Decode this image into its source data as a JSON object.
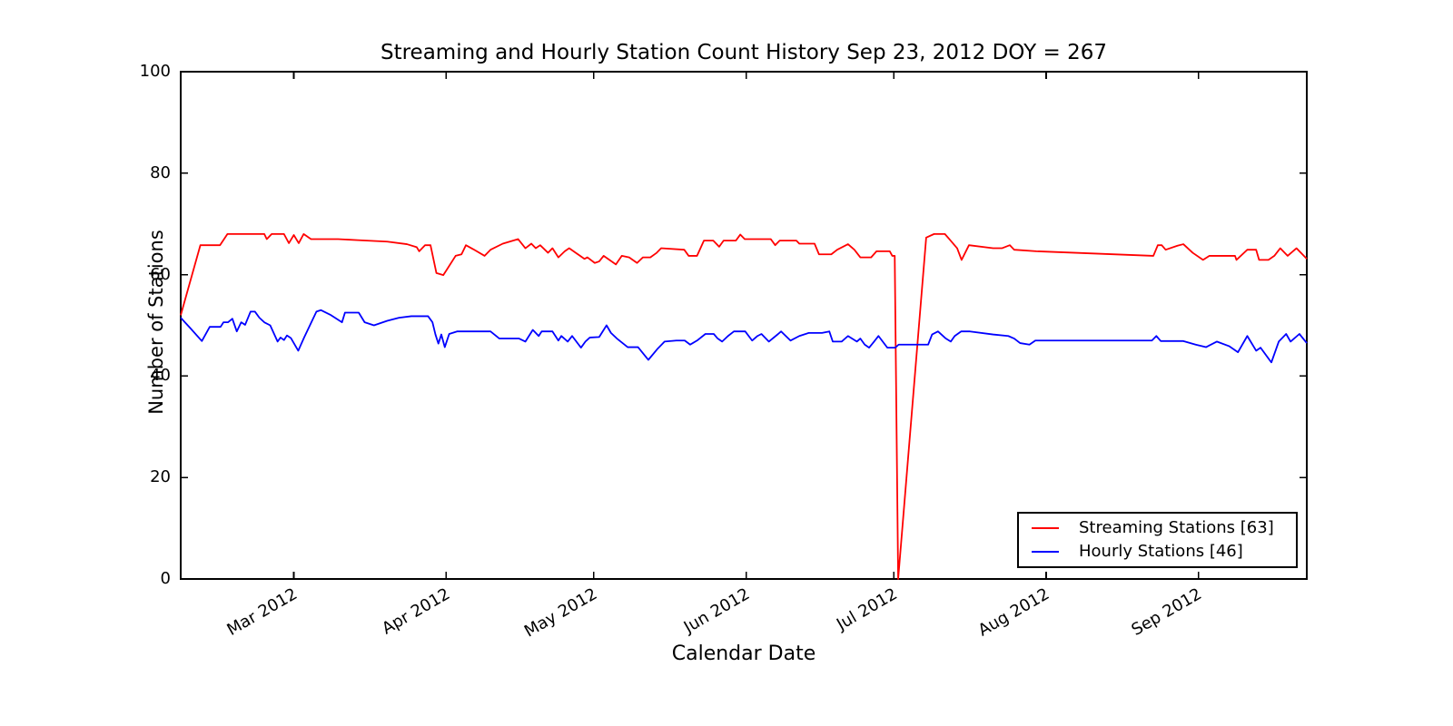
{
  "chart_data": {
    "type": "line",
    "title": "Streaming and Hourly Station Count History Sep 23, 2012 DOY = 267",
    "xlabel": "Calendar Date",
    "ylabel": "Number of Stations",
    "x_unit": "day_of_year_2012",
    "xlim": [
      38,
      267
    ],
    "ylim": [
      0,
      100
    ],
    "yticks": [
      0,
      20,
      40,
      60,
      80,
      100
    ],
    "xticks": [
      {
        "doy": 61,
        "label": "Mar 2012"
      },
      {
        "doy": 92,
        "label": "Apr 2012"
      },
      {
        "doy": 122,
        "label": "May 2012"
      },
      {
        "doy": 153,
        "label": "Jun 2012"
      },
      {
        "doy": 183,
        "label": "Jul 2012"
      },
      {
        "doy": 214,
        "label": "Aug 2012"
      },
      {
        "doy": 245,
        "label": "Sep 2012"
      }
    ],
    "grid": false,
    "legend_position": "lower right",
    "series": [
      {
        "id": "streaming-line",
        "name": "Streaming Stations [63]",
        "color": "#ff0000",
        "final_value": 63,
        "points": [
          [
            38,
            52
          ],
          [
            42,
            65.8
          ],
          [
            46,
            65.8
          ],
          [
            47.5,
            68
          ],
          [
            55,
            68
          ],
          [
            55.5,
            67
          ],
          [
            56.5,
            68
          ],
          [
            59,
            68
          ],
          [
            60,
            66.2
          ],
          [
            61,
            67.8
          ],
          [
            62,
            66.2
          ],
          [
            63,
            68
          ],
          [
            64.5,
            67
          ],
          [
            70,
            67
          ],
          [
            74,
            66.8
          ],
          [
            80,
            66.5
          ],
          [
            84,
            66
          ],
          [
            86,
            65.4
          ],
          [
            86.5,
            64.6
          ],
          [
            87.7,
            65.8
          ],
          [
            88.8,
            65.8
          ],
          [
            90,
            60.3
          ],
          [
            91.4,
            59.9
          ],
          [
            92,
            60.8
          ],
          [
            93.9,
            63.7
          ],
          [
            95.1,
            64
          ],
          [
            96,
            65.8
          ],
          [
            97.5,
            65
          ],
          [
            99.8,
            63.7
          ],
          [
            101,
            64.9
          ],
          [
            103.5,
            66.1
          ],
          [
            106.6,
            67
          ],
          [
            108.1,
            65.2
          ],
          [
            109.3,
            66.1
          ],
          [
            110.2,
            65.2
          ],
          [
            111.1,
            65.8
          ],
          [
            112.7,
            64.3
          ],
          [
            113.6,
            65.2
          ],
          [
            114.8,
            63.4
          ],
          [
            116.1,
            64.6
          ],
          [
            117,
            65.2
          ],
          [
            120.1,
            63.1
          ],
          [
            120.7,
            63.4
          ],
          [
            122.2,
            62.3
          ],
          [
            123.1,
            62.6
          ],
          [
            124,
            63.7
          ],
          [
            126.5,
            62
          ],
          [
            127.7,
            63.7
          ],
          [
            129.2,
            63.4
          ],
          [
            130.8,
            62.3
          ],
          [
            132,
            63.4
          ],
          [
            133.5,
            63.4
          ],
          [
            134.8,
            64.3
          ],
          [
            135.7,
            65.2
          ],
          [
            140.4,
            64.9
          ],
          [
            141.3,
            63.7
          ],
          [
            143,
            63.7
          ],
          [
            144.4,
            66.7
          ],
          [
            146.3,
            66.7
          ],
          [
            147.5,
            65.5
          ],
          [
            148.4,
            66.7
          ],
          [
            150.9,
            66.7
          ],
          [
            151.8,
            67.9
          ],
          [
            152.7,
            67
          ],
          [
            158,
            67
          ],
          [
            158.9,
            65.8
          ],
          [
            159.8,
            66.7
          ],
          [
            163.2,
            66.7
          ],
          [
            163.8,
            66.1
          ],
          [
            166.9,
            66.1
          ],
          [
            167.8,
            64
          ],
          [
            170.3,
            64
          ],
          [
            171.5,
            64.9
          ],
          [
            173.7,
            66
          ],
          [
            175,
            64.9
          ],
          [
            176.2,
            63.4
          ],
          [
            178.4,
            63.4
          ],
          [
            179.5,
            64.6
          ],
          [
            182.2,
            64.6
          ],
          [
            182.7,
            63.7
          ],
          [
            183.2,
            63.7
          ],
          [
            183.9,
            0
          ],
          [
            189.6,
            67.3
          ],
          [
            191.2,
            68
          ],
          [
            193.4,
            68
          ],
          [
            194.3,
            67
          ],
          [
            195.9,
            65.2
          ],
          [
            196.8,
            62.9
          ],
          [
            198.3,
            65.8
          ],
          [
            203.2,
            65.2
          ],
          [
            205,
            65.2
          ],
          [
            206.6,
            65.8
          ],
          [
            207.5,
            64.9
          ],
          [
            212,
            64.6
          ],
          [
            235.8,
            63.7
          ],
          [
            236.7,
            65.8
          ],
          [
            237.5,
            65.8
          ],
          [
            238.3,
            64.9
          ],
          [
            240.7,
            65.7
          ],
          [
            241.9,
            66
          ],
          [
            243.8,
            64.3
          ],
          [
            245.9,
            62.9
          ],
          [
            247.2,
            63.7
          ],
          [
            252.4,
            63.7
          ],
          [
            252.7,
            62.9
          ],
          [
            254.9,
            64.9
          ],
          [
            256.7,
            64.9
          ],
          [
            257.3,
            62.9
          ],
          [
            259.2,
            62.9
          ],
          [
            260.4,
            63.7
          ],
          [
            261.6,
            65.2
          ],
          [
            263.1,
            63.7
          ],
          [
            264.9,
            65.2
          ],
          [
            266.2,
            63.9
          ],
          [
            267,
            63.1
          ]
        ]
      },
      {
        "id": "hourly-line",
        "name": "Hourly Stations [46]",
        "color": "#0000ff",
        "final_value": 46,
        "points": [
          [
            38,
            51.5
          ],
          [
            40,
            49.4
          ],
          [
            42.3,
            46.9
          ],
          [
            43.9,
            49.7
          ],
          [
            46.1,
            49.7
          ],
          [
            46.7,
            50.6
          ],
          [
            47.6,
            50.6
          ],
          [
            48.5,
            51.3
          ],
          [
            49.4,
            48.8
          ],
          [
            50.3,
            50.6
          ],
          [
            51.1,
            50.1
          ],
          [
            52.2,
            52.7
          ],
          [
            53.1,
            52.7
          ],
          [
            54,
            51.5
          ],
          [
            55,
            50.6
          ],
          [
            56.2,
            50
          ],
          [
            57.7,
            46.8
          ],
          [
            58.3,
            47.6
          ],
          [
            59,
            47.1
          ],
          [
            59.6,
            48
          ],
          [
            60.4,
            47.5
          ],
          [
            61.9,
            45
          ],
          [
            63.1,
            47.6
          ],
          [
            65.6,
            52.7
          ],
          [
            66.5,
            53
          ],
          [
            68.4,
            52.1
          ],
          [
            70.8,
            50.6
          ],
          [
            71.4,
            52.5
          ],
          [
            74.2,
            52.5
          ],
          [
            75.4,
            50.6
          ],
          [
            77.3,
            50
          ],
          [
            80,
            50.9
          ],
          [
            82.4,
            51.5
          ],
          [
            84.9,
            51.8
          ],
          [
            88.3,
            51.8
          ],
          [
            89.2,
            50.6
          ],
          [
            89.8,
            48.2
          ],
          [
            90.4,
            46.4
          ],
          [
            91,
            48.2
          ],
          [
            91.7,
            45.7
          ],
          [
            92.6,
            48.3
          ],
          [
            94.2,
            48.8
          ],
          [
            101,
            48.8
          ],
          [
            102.8,
            47.4
          ],
          [
            106.8,
            47.4
          ],
          [
            108.1,
            46.8
          ],
          [
            109.6,
            49.1
          ],
          [
            110.8,
            47.9
          ],
          [
            111.4,
            48.8
          ],
          [
            113.6,
            48.8
          ],
          [
            114.8,
            47
          ],
          [
            115.4,
            47.9
          ],
          [
            116.7,
            46.8
          ],
          [
            117.6,
            47.9
          ],
          [
            119.4,
            45.6
          ],
          [
            120.3,
            46.8
          ],
          [
            121.2,
            47.6
          ],
          [
            123.1,
            47.7
          ],
          [
            124.6,
            50
          ],
          [
            125.5,
            48.5
          ],
          [
            126.7,
            47.4
          ],
          [
            128.9,
            45.7
          ],
          [
            131,
            45.7
          ],
          [
            133.1,
            43.2
          ],
          [
            134.9,
            45.3
          ],
          [
            136.4,
            46.8
          ],
          [
            138.8,
            47
          ],
          [
            140.5,
            47
          ],
          [
            141.6,
            46.2
          ],
          [
            143,
            47
          ],
          [
            144.7,
            48.3
          ],
          [
            146.4,
            48.3
          ],
          [
            147.2,
            47.4
          ],
          [
            148.1,
            46.8
          ],
          [
            149.3,
            47.9
          ],
          [
            150.5,
            48.8
          ],
          [
            152.8,
            48.8
          ],
          [
            154.2,
            47
          ],
          [
            155.3,
            47.9
          ],
          [
            156.1,
            48.3
          ],
          [
            157.6,
            46.8
          ],
          [
            159.5,
            48.3
          ],
          [
            160.1,
            48.8
          ],
          [
            162,
            47
          ],
          [
            163.8,
            47.9
          ],
          [
            165.7,
            48.5
          ],
          [
            168.4,
            48.5
          ],
          [
            169.9,
            48.8
          ],
          [
            170.6,
            46.8
          ],
          [
            172.4,
            46.8
          ],
          [
            173.7,
            47.9
          ],
          [
            175.5,
            46.8
          ],
          [
            176.2,
            47.4
          ],
          [
            177.1,
            46.2
          ],
          [
            178,
            45.6
          ],
          [
            179,
            46.8
          ],
          [
            179.9,
            47.9
          ],
          [
            181.7,
            45.6
          ],
          [
            183.3,
            45.6
          ],
          [
            184,
            46.2
          ],
          [
            190,
            46.2
          ],
          [
            190.8,
            48.2
          ],
          [
            192,
            48.8
          ],
          [
            193.6,
            47.4
          ],
          [
            194.6,
            46.8
          ],
          [
            195.4,
            47.9
          ],
          [
            196.7,
            48.8
          ],
          [
            198.5,
            48.8
          ],
          [
            203.2,
            48.2
          ],
          [
            206.3,
            47.9
          ],
          [
            207.5,
            47.4
          ],
          [
            208.7,
            46.5
          ],
          [
            210.6,
            46.2
          ],
          [
            211.8,
            47
          ],
          [
            235.5,
            47
          ],
          [
            236.4,
            47.9
          ],
          [
            237.3,
            46.9
          ],
          [
            241.9,
            46.9
          ],
          [
            244.4,
            46.2
          ],
          [
            246.5,
            45.7
          ],
          [
            248.7,
            46.8
          ],
          [
            251.2,
            45.9
          ],
          [
            252.1,
            45.3
          ],
          [
            253,
            44.7
          ],
          [
            254.9,
            47.9
          ],
          [
            256.7,
            45
          ],
          [
            257.6,
            45.6
          ],
          [
            259.4,
            43.2
          ],
          [
            259.8,
            42.7
          ],
          [
            261.3,
            46.8
          ],
          [
            262.8,
            48.3
          ],
          [
            263.7,
            46.8
          ],
          [
            265.5,
            48.3
          ],
          [
            267,
            46.5
          ]
        ]
      }
    ],
    "axis_color": "#000000",
    "background_color": "#ffffff"
  }
}
